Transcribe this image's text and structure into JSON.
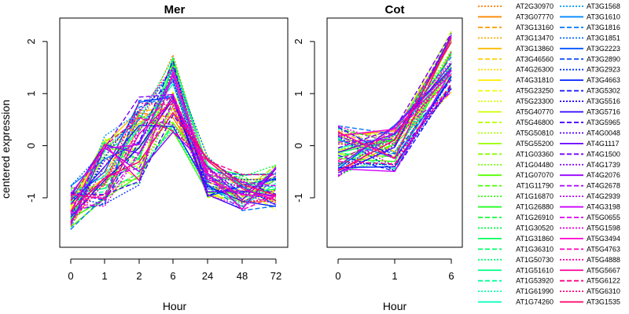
{
  "chart_data": [
    {
      "type": "line",
      "title": "Mer",
      "ylabel": "centered expression",
      "xlabel": "Hour",
      "categories": [
        "0",
        "1",
        "2",
        "6",
        "24",
        "48",
        "72"
      ],
      "yticks": [
        "-1",
        "0",
        "1",
        "2"
      ],
      "ylim": [
        -1.95,
        2.45
      ],
      "series_ref": "legend"
    },
    {
      "type": "line",
      "title": "Cot",
      "xlabel": "Hour",
      "categories": [
        "0",
        "1",
        "6"
      ],
      "yticks": [
        "-1",
        "0",
        "1",
        "2"
      ],
      "ylim": [
        -1.95,
        2.45
      ],
      "series_ref": "legend"
    }
  ],
  "legend": {
    "column1": [
      {
        "name": "AT2G30970",
        "color": "#ff7f00",
        "style": "dotted"
      },
      {
        "name": "AT3G07770",
        "color": "#ff8800",
        "style": "solid"
      },
      {
        "name": "AT3G13160",
        "color": "#ff9900",
        "style": "dashed"
      },
      {
        "name": "AT3G13470",
        "color": "#ffaa00",
        "style": "dotted"
      },
      {
        "name": "AT3G13860",
        "color": "#ffbb00",
        "style": "solid"
      },
      {
        "name": "AT3G46560",
        "color": "#ffcc00",
        "style": "dashed"
      },
      {
        "name": "AT4G26300",
        "color": "#ffdd00",
        "style": "dotted"
      },
      {
        "name": "AT4G31810",
        "color": "#ffee00",
        "style": "solid"
      },
      {
        "name": "AT5G23250",
        "color": "#eeff00",
        "style": "dashed"
      },
      {
        "name": "AT5G23300",
        "color": "#ddff00",
        "style": "dotted"
      },
      {
        "name": "AT5G40770",
        "color": "#ccff00",
        "style": "solid"
      },
      {
        "name": "AT5G46800",
        "color": "#bbff00",
        "style": "dashed"
      },
      {
        "name": "AT5G50810",
        "color": "#aaff00",
        "style": "dotted"
      },
      {
        "name": "AT5G55200",
        "color": "#99ff00",
        "style": "solid"
      },
      {
        "name": "AT1G03360",
        "color": "#88ff00",
        "style": "dashed"
      },
      {
        "name": "AT1G04480",
        "color": "#77ff00",
        "style": "dotted"
      },
      {
        "name": "AT1G07070",
        "color": "#55ff00",
        "style": "solid"
      },
      {
        "name": "AT1G11790",
        "color": "#44ff00",
        "style": "dashed"
      },
      {
        "name": "AT1G16870",
        "color": "#33ff11",
        "style": "dotted"
      },
      {
        "name": "AT1G26880",
        "color": "#22ff22",
        "style": "solid"
      },
      {
        "name": "AT1G26910",
        "color": "#11ff33",
        "style": "dashed"
      },
      {
        "name": "AT1G30520",
        "color": "#00ff44",
        "style": "dotted"
      },
      {
        "name": "AT1G31860",
        "color": "#00ff55",
        "style": "solid"
      },
      {
        "name": "AT1G36310",
        "color": "#00ff66",
        "style": "dashed"
      },
      {
        "name": "AT1G50730",
        "color": "#00ff77",
        "style": "dotted"
      },
      {
        "name": "AT1G51610",
        "color": "#00ff88",
        "style": "solid"
      },
      {
        "name": "AT1G53920",
        "color": "#00ff99",
        "style": "dashed"
      },
      {
        "name": "AT1G61990",
        "color": "#00ffaa",
        "style": "dotted"
      },
      {
        "name": "AT1G74260",
        "color": "#00ffbb",
        "style": "solid"
      }
    ],
    "column2": [
      {
        "name": "AT3G1568",
        "color": "#0099ff",
        "style": "dotted"
      },
      {
        "name": "AT3G1610",
        "color": "#0088ff",
        "style": "solid"
      },
      {
        "name": "AT3G1816",
        "color": "#0077ff",
        "style": "dashed"
      },
      {
        "name": "AT3G1851",
        "color": "#0066ff",
        "style": "dotted"
      },
      {
        "name": "AT3G2223",
        "color": "#0055ff",
        "style": "solid"
      },
      {
        "name": "AT3G2890",
        "color": "#0044ff",
        "style": "dashed"
      },
      {
        "name": "AT3G2923",
        "color": "#0033ff",
        "style": "dotted"
      },
      {
        "name": "AT3G4663",
        "color": "#0022ff",
        "style": "solid"
      },
      {
        "name": "AT3G5302",
        "color": "#1111ff",
        "style": "dashed"
      },
      {
        "name": "AT3G5516",
        "color": "#2200ff",
        "style": "dotted"
      },
      {
        "name": "AT3G5716",
        "color": "#3300ff",
        "style": "solid"
      },
      {
        "name": "AT3G5965",
        "color": "#4400ff",
        "style": "dashed"
      },
      {
        "name": "AT4G0048",
        "color": "#5500ff",
        "style": "dotted"
      },
      {
        "name": "AT4G1117",
        "color": "#6600ff",
        "style": "solid"
      },
      {
        "name": "AT4G1500",
        "color": "#7700ff",
        "style": "dashed"
      },
      {
        "name": "AT4G1739",
        "color": "#8800ff",
        "style": "dotted"
      },
      {
        "name": "AT4G2076",
        "color": "#9900ff",
        "style": "solid"
      },
      {
        "name": "AT4G2678",
        "color": "#aa00ff",
        "style": "dashed"
      },
      {
        "name": "AT4G2939",
        "color": "#bb00ff",
        "style": "dotted"
      },
      {
        "name": "AT4G3198",
        "color": "#cc00ff",
        "style": "solid"
      },
      {
        "name": "AT5G0655",
        "color": "#dd00ee",
        "style": "dashed"
      },
      {
        "name": "AT5G1598",
        "color": "#ee00dd",
        "style": "dotted"
      },
      {
        "name": "AT5G3494",
        "color": "#ff00cc",
        "style": "solid"
      },
      {
        "name": "AT5G4763",
        "color": "#ff00bb",
        "style": "dashed"
      },
      {
        "name": "AT5G4888",
        "color": "#ff00aa",
        "style": "dotted"
      },
      {
        "name": "AT5G5667",
        "color": "#ff0099",
        "style": "solid"
      },
      {
        "name": "AT5G6122",
        "color": "#ff0088",
        "style": "dashed"
      },
      {
        "name": "AT5G6310",
        "color": "#ff0077",
        "style": "dotted"
      },
      {
        "name": "AT3G1535",
        "color": "#ff0066",
        "style": "solid"
      }
    ]
  }
}
